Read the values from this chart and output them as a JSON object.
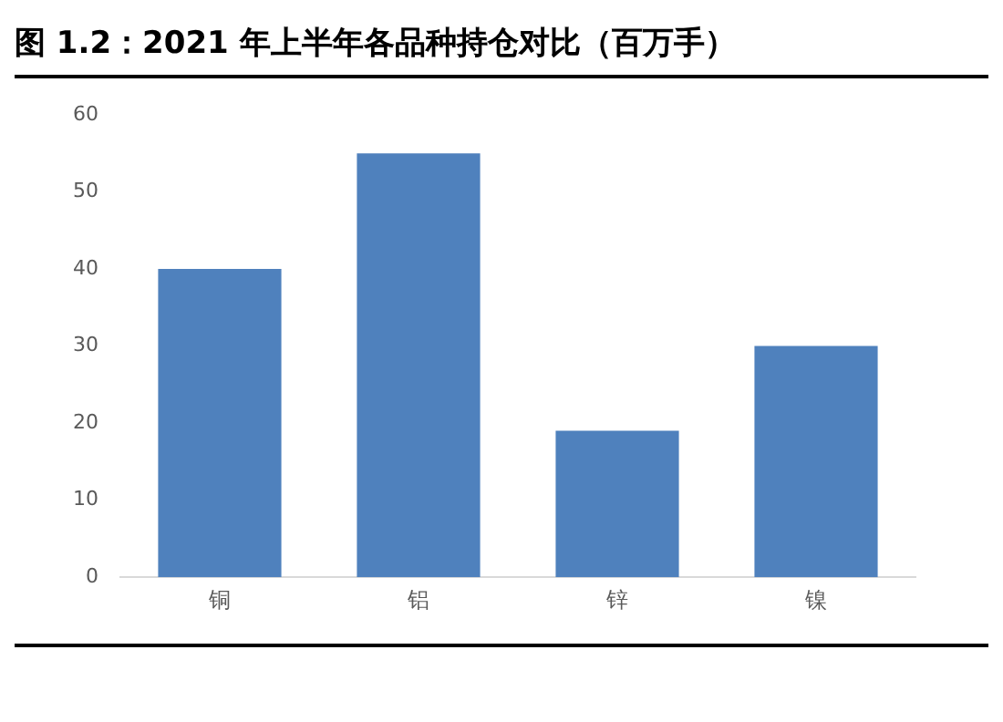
{
  "chart_data": {
    "type": "bar",
    "title": "图 1.2：2021 年上半年各品种持仓对比（百万手）",
    "categories": [
      "铜",
      "铝",
      "锌",
      "镍"
    ],
    "values": [
      40,
      55,
      19,
      30
    ],
    "color": "#4f81bd",
    "ylim": [
      0,
      60
    ],
    "yticks": [
      0,
      10,
      20,
      30,
      40,
      50,
      60
    ],
    "grid": false
  }
}
